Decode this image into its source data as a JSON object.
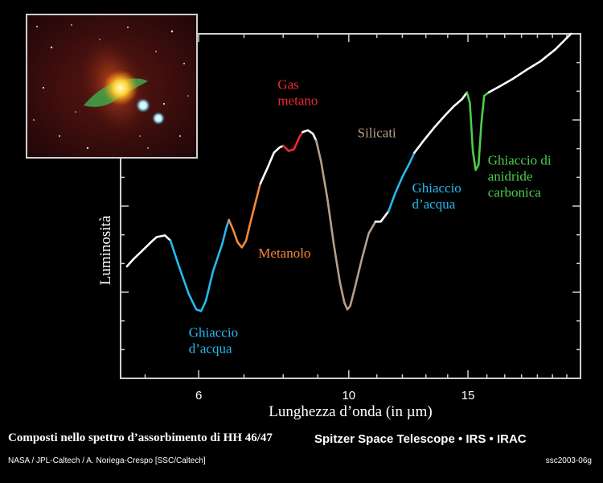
{
  "chart_data": {
    "type": "line",
    "title": "Composti nello spettro d’assorbimento di HH 46/47",
    "xlabel": "Lunghezza d’onda (in µm)",
    "ylabel": "Luminosità",
    "x_scale": "log",
    "xlim": [
      4.6,
      22.0
    ],
    "ylim": [
      0,
      1
    ],
    "x_ticks": [
      6,
      10,
      15
    ],
    "grid": false,
    "series": [
      {
        "color": "#ffffff",
        "points": [
          [
            4.7,
            0.325
          ],
          [
            4.8,
            0.345
          ],
          [
            4.95,
            0.37
          ],
          [
            5.1,
            0.395
          ],
          [
            5.2,
            0.41
          ],
          [
            5.35,
            0.415
          ],
          [
            5.45,
            0.4
          ]
        ]
      },
      {
        "color": "#29b8ee",
        "points": [
          [
            5.45,
            0.4
          ],
          [
            5.6,
            0.33
          ],
          [
            5.8,
            0.245
          ],
          [
            5.95,
            0.2
          ],
          [
            6.05,
            0.195
          ],
          [
            6.15,
            0.225
          ],
          [
            6.3,
            0.31
          ],
          [
            6.5,
            0.39
          ],
          [
            6.6,
            0.44
          ],
          [
            6.65,
            0.46
          ]
        ]
      },
      {
        "color": "#f5883a",
        "points": [
          [
            6.65,
            0.46
          ],
          [
            6.75,
            0.43
          ],
          [
            6.85,
            0.395
          ],
          [
            6.95,
            0.38
          ],
          [
            7.05,
            0.4
          ],
          [
            7.15,
            0.45
          ],
          [
            7.3,
            0.52
          ],
          [
            7.4,
            0.565
          ]
        ]
      },
      {
        "color": "#ffffff",
        "points": [
          [
            7.4,
            0.565
          ],
          [
            7.6,
            0.615
          ],
          [
            7.75,
            0.655
          ],
          [
            7.9,
            0.67
          ],
          [
            8.0,
            0.675
          ]
        ]
      },
      {
        "color": "#ed2a2f",
        "points": [
          [
            8.0,
            0.675
          ],
          [
            8.15,
            0.66
          ],
          [
            8.3,
            0.665
          ],
          [
            8.45,
            0.7
          ],
          [
            8.55,
            0.715
          ]
        ]
      },
      {
        "color": "#ffffff",
        "points": [
          [
            8.55,
            0.715
          ],
          [
            8.7,
            0.72
          ],
          [
            8.85,
            0.71
          ],
          [
            8.95,
            0.69
          ]
        ]
      },
      {
        "color": "#b99f86",
        "points": [
          [
            8.95,
            0.69
          ],
          [
            9.1,
            0.63
          ],
          [
            9.3,
            0.52
          ],
          [
            9.5,
            0.39
          ],
          [
            9.7,
            0.28
          ],
          [
            9.85,
            0.22
          ],
          [
            9.95,
            0.2
          ],
          [
            10.05,
            0.21
          ],
          [
            10.2,
            0.26
          ],
          [
            10.45,
            0.345
          ],
          [
            10.7,
            0.42
          ],
          [
            10.95,
            0.455
          ]
        ]
      },
      {
        "color": "#ffffff",
        "points": [
          [
            10.95,
            0.455
          ],
          [
            11.15,
            0.455
          ],
          [
            11.3,
            0.47
          ],
          [
            11.45,
            0.485
          ]
        ]
      },
      {
        "color": "#29b8ee",
        "points": [
          [
            11.45,
            0.485
          ],
          [
            11.7,
            0.535
          ],
          [
            12.0,
            0.585
          ],
          [
            12.3,
            0.625
          ],
          [
            12.5,
            0.655
          ]
        ]
      },
      {
        "color": "#ffffff",
        "points": [
          [
            12.5,
            0.655
          ],
          [
            12.9,
            0.69
          ],
          [
            13.4,
            0.73
          ],
          [
            13.9,
            0.765
          ],
          [
            14.3,
            0.79
          ],
          [
            14.7,
            0.81
          ],
          [
            14.95,
            0.83
          ]
        ]
      },
      {
        "color": "#4ccd4a",
        "points": [
          [
            14.95,
            0.83
          ],
          [
            15.1,
            0.8
          ],
          [
            15.25,
            0.66
          ],
          [
            15.4,
            0.605
          ],
          [
            15.55,
            0.62
          ],
          [
            15.7,
            0.74
          ],
          [
            15.85,
            0.82
          ],
          [
            16.1,
            0.83
          ]
        ]
      },
      {
        "color": "#ffffff",
        "points": [
          [
            16.1,
            0.83
          ],
          [
            16.8,
            0.85
          ],
          [
            17.5,
            0.87
          ],
          [
            18.3,
            0.895
          ],
          [
            19.2,
            0.92
          ],
          [
            20.2,
            0.955
          ],
          [
            21.3,
            1.0
          ]
        ]
      }
    ],
    "annotations": [
      {
        "text": "Ghiaccio",
        "text2": "d’acqua",
        "color": "#29b8ee",
        "x": 5.8,
        "y": 0.12
      },
      {
        "text": "Metanolo",
        "text2": "",
        "color": "#f5883a",
        "x": 7.35,
        "y": 0.35
      },
      {
        "text": "Gas",
        "text2": "metano",
        "color": "#ed2a2f",
        "x": 7.85,
        "y": 0.84
      },
      {
        "text": "Silicati",
        "text2": "",
        "color": "#b99f86",
        "x": 10.3,
        "y": 0.7
      },
      {
        "text": "Ghiaccio",
        "text2": "d’acqua",
        "color": "#29b8ee",
        "x": 12.4,
        "y": 0.54
      },
      {
        "text": "Ghiaccio di",
        "text2": "anidride",
        "text3": "carbonica",
        "color": "#4ccd4a",
        "x": 16.05,
        "y": 0.62
      }
    ]
  },
  "captions": {
    "left": "Composti nello spettro d’assorbimento di HH 46/47",
    "right": "Spitzer Space Telescope • IRS • IRAC",
    "credit_left": "NASA / JPL-Caltech / A. Noriega-Crespo [SSC/Caltech]",
    "credit_right": "ssc2003-06g"
  }
}
